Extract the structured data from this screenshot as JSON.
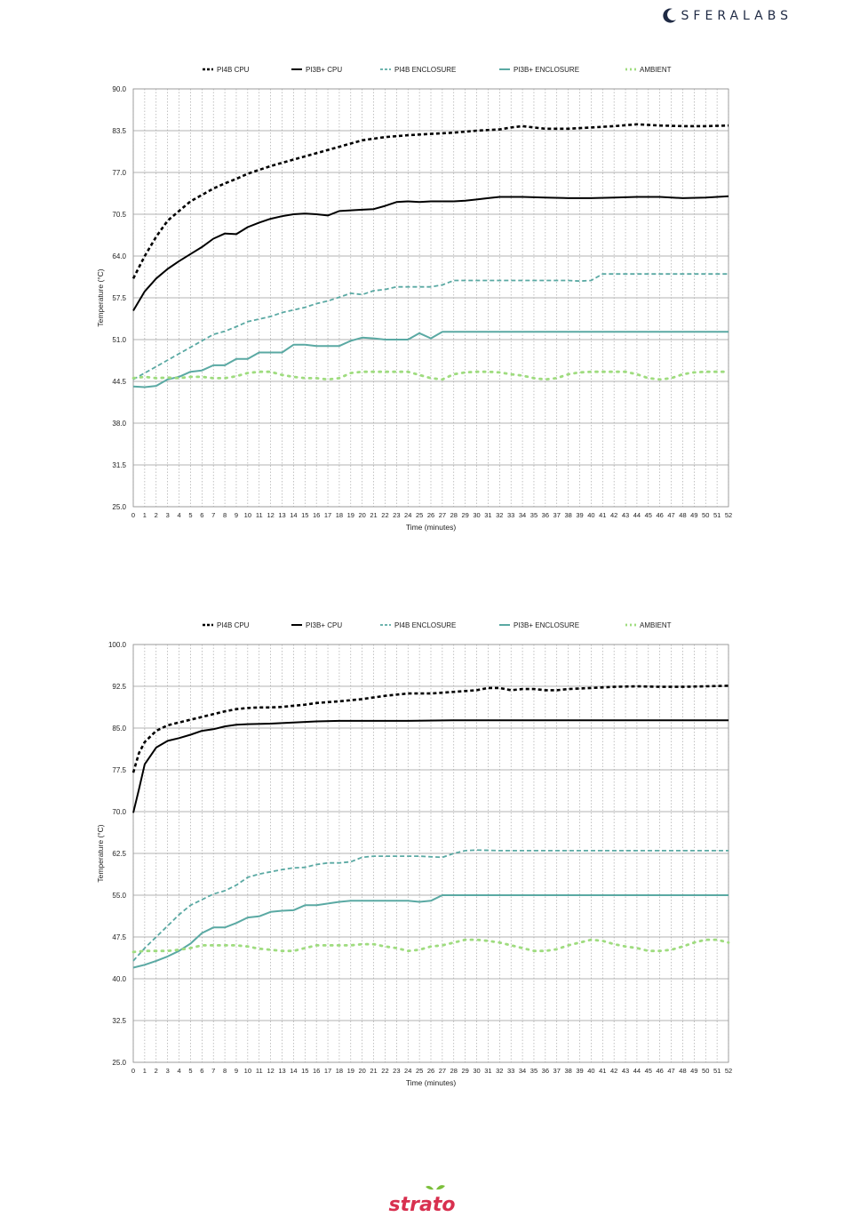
{
  "brand": {
    "name": "SFERALABS"
  },
  "footer": {
    "logo": "strato"
  },
  "colors": {
    "pi4_cpu": "#000000",
    "pi3_cpu": "#000000",
    "pi4_enc": "#5aa9a3",
    "pi3_enc": "#5aa9a3",
    "ambient": "#9fdc7f",
    "grid": "#bbbbbb"
  },
  "chart_data": [
    {
      "type": "line",
      "title": "",
      "xlabel": "Time (minutes)",
      "ylabel": "Temperature (°C)",
      "xlim": [
        0,
        52
      ],
      "ylim": [
        25.0,
        90.0
      ],
      "yticks": [
        "25.0",
        "31.5",
        "38.0",
        "44.5",
        "51.0",
        "57.5",
        "64.0",
        "70.5",
        "77.0",
        "83.5",
        "90.0"
      ],
      "xticks": [
        "0",
        "1",
        "2",
        "3",
        "4",
        "5",
        "6",
        "7",
        "8",
        "9",
        "10",
        "11",
        "12",
        "13",
        "14",
        "15",
        "16",
        "17",
        "18",
        "19",
        "20",
        "21",
        "22",
        "23",
        "24",
        "25",
        "26",
        "27",
        "28",
        "29",
        "30",
        "31",
        "32",
        "33",
        "34",
        "35",
        "36",
        "37",
        "38",
        "39",
        "40",
        "41",
        "42",
        "43",
        "44",
        "45",
        "46",
        "47",
        "48",
        "49",
        "50",
        "51",
        "52"
      ],
      "grid": true,
      "legend_position": "top",
      "series": [
        {
          "name": "PI4B CPU",
          "style": "dashed-thick",
          "color": "#000000",
          "x": [
            0,
            1,
            2,
            3,
            4,
            5,
            6,
            7,
            8,
            9,
            10,
            12,
            14,
            16,
            18,
            20,
            22,
            24,
            26,
            28,
            30,
            32,
            33,
            34,
            35,
            36,
            38,
            40,
            42,
            44,
            46,
            48,
            50,
            52
          ],
          "y": [
            60.5,
            64.0,
            67.0,
            69.5,
            71.0,
            72.5,
            73.5,
            74.5,
            75.3,
            76.0,
            76.8,
            78.0,
            79.0,
            80.0,
            81.0,
            82.0,
            82.5,
            82.8,
            83.0,
            83.2,
            83.5,
            83.7,
            84.0,
            84.2,
            84.0,
            83.8,
            83.8,
            84.0,
            84.2,
            84.5,
            84.3,
            84.2,
            84.2,
            84.3
          ]
        },
        {
          "name": "PI3B+ CPU",
          "style": "solid-thick",
          "color": "#000000",
          "x": [
            0,
            1,
            2,
            3,
            4,
            5,
            6,
            7,
            8,
            9,
            10,
            11,
            12,
            13,
            14,
            15,
            16,
            17,
            18,
            20,
            21,
            22,
            23,
            24,
            25,
            26,
            27,
            28,
            29,
            30,
            31,
            32,
            34,
            36,
            38,
            40,
            42,
            44,
            46,
            48,
            50,
            52
          ],
          "y": [
            55.5,
            58.5,
            60.5,
            62.0,
            63.2,
            64.3,
            65.4,
            66.7,
            67.5,
            67.4,
            68.5,
            69.2,
            69.8,
            70.2,
            70.5,
            70.6,
            70.5,
            70.3,
            71.0,
            71.2,
            71.3,
            71.8,
            72.4,
            72.5,
            72.4,
            72.5,
            72.5,
            72.5,
            72.6,
            72.8,
            73.0,
            73.2,
            73.2,
            73.1,
            73.0,
            73.0,
            73.1,
            73.2,
            73.2,
            73.0,
            73.1,
            73.3
          ]
        },
        {
          "name": "PI4B ENCLOSURE",
          "style": "dashed",
          "color": "#5aa9a3",
          "x": [
            0,
            1,
            2,
            3,
            4,
            5,
            6,
            7,
            8,
            9,
            10,
            11,
            12,
            13,
            14,
            15,
            16,
            17,
            18,
            19,
            20,
            21,
            22,
            23,
            24,
            25,
            26,
            27,
            28,
            29,
            30,
            31,
            32,
            33,
            34,
            35,
            36,
            37,
            38,
            39,
            40,
            41,
            42,
            43,
            44,
            45,
            46,
            47,
            48,
            49,
            50,
            51,
            52
          ],
          "y": [
            44.8,
            45.8,
            46.8,
            47.8,
            48.8,
            49.8,
            50.8,
            51.8,
            52.3,
            53.0,
            53.8,
            54.2,
            54.6,
            55.2,
            55.6,
            56.0,
            56.6,
            57.0,
            57.6,
            58.2,
            58.0,
            58.6,
            58.8,
            59.2,
            59.2,
            59.2,
            59.2,
            59.5,
            60.2,
            60.2,
            60.2,
            60.2,
            60.2,
            60.2,
            60.2,
            60.2,
            60.2,
            60.2,
            60.2,
            60.1,
            60.2,
            61.2,
            61.2,
            61.2,
            61.2,
            61.2,
            61.2,
            61.2,
            61.2,
            61.2,
            61.2,
            61.2,
            61.2
          ]
        },
        {
          "name": "PI3B+ ENCLOSURE",
          "style": "solid",
          "color": "#5aa9a3",
          "x": [
            0,
            1,
            2,
            3,
            4,
            5,
            6,
            7,
            8,
            9,
            10,
            11,
            12,
            13,
            14,
            15,
            16,
            17,
            18,
            19,
            20,
            21,
            22,
            23,
            24,
            25,
            26,
            27,
            28,
            29,
            30,
            32,
            34,
            36,
            38,
            40,
            42,
            44,
            46,
            48,
            50,
            52
          ],
          "y": [
            43.7,
            43.6,
            43.8,
            44.8,
            45.2,
            46.0,
            46.2,
            47.0,
            47.0,
            48.0,
            48.0,
            49.0,
            49.0,
            49.0,
            50.2,
            50.2,
            50.0,
            50.0,
            50.0,
            50.8,
            51.3,
            51.2,
            51.0,
            51.0,
            51.0,
            52.0,
            51.2,
            52.2,
            52.2,
            52.2,
            52.2,
            52.2,
            52.2,
            52.2,
            52.2,
            52.2,
            52.2,
            52.2,
            52.2,
            52.2,
            52.2,
            52.2
          ]
        },
        {
          "name": "AMBIENT",
          "style": "dotted",
          "color": "#9fdc7f",
          "x": [
            0,
            1,
            2,
            3,
            4,
            5,
            6,
            7,
            8,
            9,
            10,
            11,
            12,
            13,
            14,
            15,
            16,
            17,
            18,
            19,
            20,
            21,
            22,
            23,
            24,
            25,
            26,
            27,
            28,
            29,
            30,
            31,
            32,
            33,
            34,
            35,
            36,
            37,
            38,
            39,
            40,
            41,
            42,
            43,
            44,
            45,
            46,
            47,
            48,
            49,
            50,
            51,
            52
          ],
          "y": [
            45.0,
            45.2,
            45.0,
            45.1,
            45.0,
            45.2,
            45.2,
            45.0,
            45.0,
            45.3,
            45.8,
            46.0,
            46.0,
            45.5,
            45.2,
            45.0,
            45.0,
            44.8,
            45.0,
            45.8,
            46.0,
            46.0,
            46.0,
            46.0,
            46.0,
            45.5,
            45.0,
            44.8,
            45.6,
            45.9,
            46.0,
            46.0,
            45.9,
            45.6,
            45.4,
            45.0,
            44.8,
            45.0,
            45.6,
            45.9,
            46.0,
            46.0,
            46.0,
            46.0,
            45.6,
            45.0,
            44.8,
            45.0,
            45.6,
            45.9,
            46.0,
            46.0,
            46.0
          ]
        }
      ]
    },
    {
      "type": "line",
      "title": "",
      "xlabel": "Time (minutes)",
      "ylabel": "Temperature (°C)",
      "xlim": [
        0,
        52
      ],
      "ylim": [
        25.0,
        100.0
      ],
      "yticks": [
        "25.0",
        "32.5",
        "40.0",
        "47.5",
        "55.0",
        "62.5",
        "70.0",
        "77.5",
        "85.0",
        "92.5",
        "100.0"
      ],
      "xticks": [
        "0",
        "1",
        "2",
        "3",
        "4",
        "5",
        "6",
        "7",
        "8",
        "9",
        "10",
        "11",
        "12",
        "13",
        "14",
        "15",
        "16",
        "17",
        "18",
        "19",
        "20",
        "21",
        "22",
        "23",
        "24",
        "25",
        "26",
        "27",
        "28",
        "29",
        "30",
        "31",
        "32",
        "33",
        "34",
        "35",
        "36",
        "37",
        "38",
        "39",
        "40",
        "41",
        "42",
        "43",
        "44",
        "45",
        "46",
        "47",
        "48",
        "49",
        "50",
        "51",
        "52"
      ],
      "grid": true,
      "legend_position": "top",
      "series": [
        {
          "name": "PI4B CPU",
          "style": "dashed-thick",
          "color": "#000000",
          "x": [
            0,
            0.5,
            1,
            2,
            3,
            4,
            5,
            6,
            7,
            8,
            9,
            10,
            11,
            12,
            13,
            14,
            15,
            16,
            18,
            20,
            22,
            24,
            26,
            28,
            30,
            31,
            32,
            33,
            34,
            35,
            36,
            37,
            38,
            40,
            42,
            44,
            46,
            48,
            50,
            52
          ],
          "y": [
            77.0,
            80.5,
            82.5,
            84.5,
            85.5,
            86.0,
            86.5,
            87.0,
            87.5,
            88.0,
            88.4,
            88.6,
            88.7,
            88.7,
            88.8,
            89.0,
            89.2,
            89.5,
            89.8,
            90.2,
            90.8,
            91.2,
            91.2,
            91.5,
            91.8,
            92.2,
            92.2,
            91.8,
            92.0,
            92.0,
            91.8,
            91.8,
            92.0,
            92.2,
            92.4,
            92.5,
            92.4,
            92.4,
            92.5,
            92.6
          ]
        },
        {
          "name": "PI3B+ CPU",
          "style": "solid-thick",
          "color": "#000000",
          "x": [
            0,
            0.5,
            1,
            2,
            3,
            4,
            5,
            6,
            7,
            8,
            9,
            10,
            12,
            14,
            16,
            18,
            20,
            24,
            28,
            32,
            36,
            40,
            44,
            48,
            52
          ],
          "y": [
            69.8,
            74.0,
            78.5,
            81.5,
            82.7,
            83.2,
            83.8,
            84.5,
            84.8,
            85.3,
            85.6,
            85.7,
            85.8,
            86.0,
            86.2,
            86.3,
            86.3,
            86.3,
            86.4,
            86.4,
            86.4,
            86.4,
            86.4,
            86.4,
            86.4
          ]
        },
        {
          "name": "PI4B ENCLOSURE",
          "style": "dashed",
          "color": "#5aa9a3",
          "x": [
            0,
            1,
            2,
            3,
            4,
            5,
            6,
            7,
            8,
            9,
            10,
            11,
            12,
            13,
            14,
            15,
            16,
            17,
            18,
            19,
            20,
            21,
            22,
            23,
            24,
            25,
            26,
            27,
            28,
            29,
            30,
            32,
            36,
            40,
            44,
            48,
            52
          ],
          "y": [
            43.2,
            45.5,
            47.5,
            49.5,
            51.5,
            53.2,
            54.2,
            55.2,
            55.8,
            56.8,
            58.2,
            58.8,
            59.2,
            59.6,
            59.9,
            60.0,
            60.5,
            60.8,
            60.8,
            61.0,
            61.8,
            62.0,
            62.0,
            62.0,
            62.0,
            62.0,
            61.9,
            61.8,
            62.5,
            63.0,
            63.1,
            63.0,
            63.0,
            63.0,
            63.0,
            63.0,
            63.0
          ]
        },
        {
          "name": "PI3B+ ENCLOSURE",
          "style": "solid",
          "color": "#5aa9a3",
          "x": [
            0,
            1,
            2,
            3,
            4,
            5,
            6,
            7,
            8,
            9,
            10,
            11,
            12,
            13,
            14,
            15,
            16,
            17,
            18,
            19,
            20,
            22,
            24,
            25,
            26,
            27,
            28,
            30,
            34,
            38,
            42,
            46,
            50,
            52
          ],
          "y": [
            42.0,
            42.5,
            43.2,
            44.0,
            45.0,
            46.3,
            48.2,
            49.2,
            49.2,
            50.0,
            51.0,
            51.2,
            52.0,
            52.2,
            52.3,
            53.2,
            53.2,
            53.5,
            53.8,
            54.0,
            54.0,
            54.0,
            54.0,
            53.8,
            54.0,
            55.0,
            55.0,
            55.0,
            55.0,
            55.0,
            55.0,
            55.0,
            55.0,
            55.0
          ]
        },
        {
          "name": "AMBIENT",
          "style": "dotted",
          "color": "#9fdc7f",
          "x": [
            0,
            1,
            2,
            3,
            4,
            5,
            6,
            7,
            8,
            9,
            10,
            11,
            12,
            13,
            14,
            15,
            16,
            17,
            18,
            19,
            20,
            21,
            22,
            23,
            24,
            25,
            26,
            27,
            28,
            29,
            30,
            31,
            32,
            33,
            34,
            35,
            36,
            37,
            38,
            39,
            40,
            41,
            42,
            43,
            44,
            45,
            46,
            47,
            48,
            49,
            50,
            51,
            52
          ],
          "y": [
            44.8,
            45.0,
            45.0,
            45.0,
            45.2,
            45.5,
            46.0,
            46.0,
            46.0,
            46.0,
            45.8,
            45.4,
            45.2,
            45.0,
            45.0,
            45.5,
            46.0,
            46.0,
            46.0,
            46.0,
            46.2,
            46.2,
            45.8,
            45.5,
            45.0,
            45.2,
            45.8,
            46.0,
            46.5,
            47.0,
            47.0,
            46.8,
            46.5,
            46.0,
            45.5,
            45.0,
            45.0,
            45.3,
            46.0,
            46.5,
            47.0,
            46.8,
            46.2,
            45.8,
            45.5,
            45.0,
            45.0,
            45.2,
            45.8,
            46.5,
            47.0,
            47.0,
            46.5
          ]
        }
      ]
    }
  ]
}
